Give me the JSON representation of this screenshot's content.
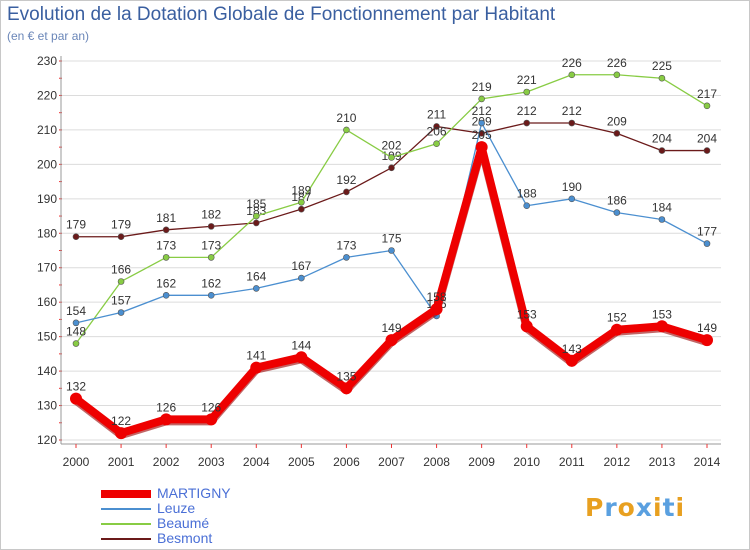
{
  "header": {
    "title": "Evolution de la Dotation Globale de Fonctionnement par Habitant",
    "subtitle": "(en € et par an)"
  },
  "chart_data": {
    "type": "line",
    "title": "Evolution de la Dotation Globale de Fonctionnement par Habitant",
    "subtitle": "(en € et par an)",
    "xlabel": "",
    "ylabel": "",
    "categories": [
      "2000",
      "2001",
      "2002",
      "2003",
      "2004",
      "2005",
      "2006",
      "2007",
      "2008",
      "2009",
      "2010",
      "2011",
      "2012",
      "2013",
      "2014"
    ],
    "ylim": [
      120,
      230
    ],
    "yticks": [
      120,
      130,
      140,
      150,
      160,
      170,
      180,
      190,
      200,
      210,
      220,
      230
    ],
    "grid": "horizontal",
    "legend_position": "bottom-left",
    "series": [
      {
        "name": "MARTIGNY",
        "color": "#ee0000",
        "values": [
          132,
          122,
          126,
          126,
          141,
          144,
          135,
          149,
          158,
          205,
          153,
          143,
          152,
          153,
          149
        ]
      },
      {
        "name": "Leuze",
        "color": "#4b8fd0",
        "values": [
          154,
          157,
          162,
          162,
          164,
          167,
          173,
          175,
          156,
          212,
          188,
          190,
          186,
          184,
          177
        ]
      },
      {
        "name": "Beaumé",
        "color": "#88cc44",
        "values": [
          148,
          166,
          173,
          173,
          185,
          189,
          210,
          202,
          206,
          219,
          221,
          226,
          226,
          225,
          217
        ]
      },
      {
        "name": "Besmont",
        "color": "#6b1a1a",
        "values": [
          179,
          179,
          181,
          182,
          183,
          187,
          192,
          199,
          211,
          209,
          212,
          212,
          209,
          204,
          204
        ]
      }
    ]
  },
  "logo": {
    "letters": [
      "P",
      "r",
      "o",
      "x",
      "i",
      "t",
      "i"
    ],
    "colors": [
      "#e8a020",
      "#5aa0e0",
      "#e8a020",
      "#5aa0e0",
      "#e8a020",
      "#5aa0e0",
      "#e8a020"
    ]
  }
}
